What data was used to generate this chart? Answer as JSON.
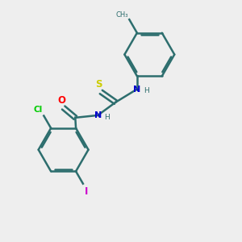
{
  "background_color": "#eeeeee",
  "bond_color": "#2d6e6e",
  "atom_colors": {
    "N": "#0000cc",
    "O": "#ff0000",
    "S": "#cccc00",
    "Cl": "#00cc00",
    "I": "#cc00cc",
    "C": "#2d6e6e",
    "H": "#555555"
  },
  "figsize": [
    3.0,
    3.0
  ],
  "dpi": 100
}
